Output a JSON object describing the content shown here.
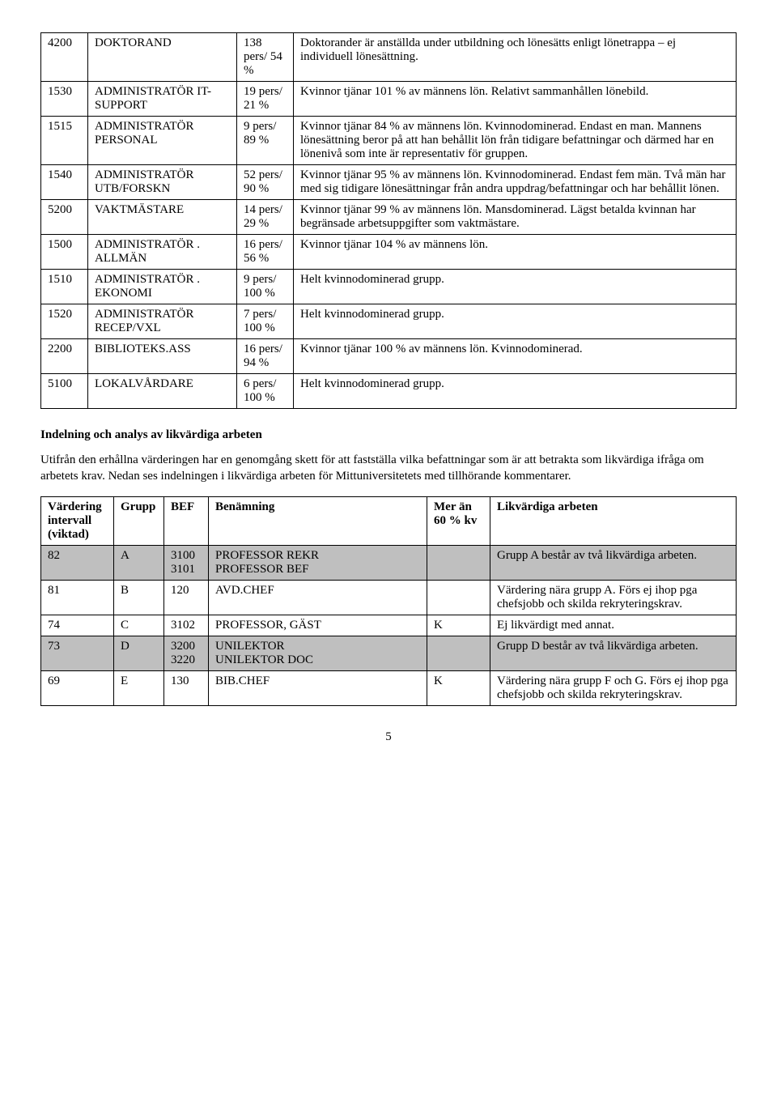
{
  "table1": {
    "rows": [
      {
        "code": "4200",
        "title": "DOKTORAND",
        "stat": "138 pers/ 54 %",
        "comment": "Doktorander är anställda under utbildning och lönesätts enligt lönetrappa – ej individuell lönesättning."
      },
      {
        "code": "1530",
        "title": "ADMINISTRATÖR IT-SUPPORT",
        "stat": "19 pers/ 21 %",
        "comment": "Kvinnor tjänar 101 % av männens lön. Relativt sammanhållen lönebild."
      },
      {
        "code": "1515",
        "title": "ADMINISTRATÖR PERSONAL",
        "stat": "9 pers/ 89 %",
        "comment": "Kvinnor tjänar 84 % av männens lön. Kvinnodominerad. Endast en man. Mannens lönesättning beror på att han behållit lön från tidigare befattningar och därmed har en lönenivå som inte är representativ för gruppen."
      },
      {
        "code": "1540",
        "title": "ADMINISTRATÖR UTB/FORSKN",
        "stat": "52 pers/ 90 %",
        "comment": "Kvinnor tjänar 95 % av männens lön. Kvinnodominerad. Endast fem män. Två män har med sig tidigare lönesättningar från andra uppdrag/befattningar och har behållit lönen."
      },
      {
        "code": "5200",
        "title": "VAKTMÄSTARE",
        "stat": "14 pers/ 29 %",
        "comment": "Kvinnor tjänar 99 % av männens lön. Mansdominerad. Lägst betalda kvinnan har begränsade arbetsuppgifter som vaktmästare."
      },
      {
        "code": "1500",
        "title": "ADMINISTRATÖR . ALLMÄN",
        "stat": "16 pers/ 56 %",
        "comment": "Kvinnor tjänar 104 % av männens lön."
      },
      {
        "code": "1510",
        "title": "ADMINISTRATÖR . EKONOMI",
        "stat": "9 pers/ 100 %",
        "comment": "Helt kvinnodominerad grupp."
      },
      {
        "code": "1520",
        "title": "ADMINISTRATÖR RECEP/VXL",
        "stat": "7 pers/ 100 %",
        "comment": "Helt kvinnodominerad grupp."
      },
      {
        "code": "2200",
        "title": "BIBLIOTEKS.ASS",
        "stat": "16 pers/ 94 %",
        "comment": "Kvinnor tjänar 100 % av männens lön. Kvinnodominerad."
      },
      {
        "code": "5100",
        "title": "LOKALVÅRDARE",
        "stat": "6 pers/ 100 %",
        "comment": "Helt kvinnodominerad grupp."
      }
    ]
  },
  "section_heading": "Indelning och analys av likvärdiga arbeten",
  "section_body": "Utifrån den erhållna värderingen har en genomgång skett för att fastställa vilka befattningar som är att betrakta som likvärdiga ifråga om arbetets krav. Nedan ses indelningen i likvärdiga arbeten för Mittuniversitetets med tillhörande kommentarer.",
  "table2": {
    "headers": {
      "col0": "Värdering intervall (viktad)",
      "col1": "Grupp",
      "col2": "BEF",
      "col3": "Benämning",
      "col4": "Mer än 60 % kv",
      "col5": "Likvärdiga arbeten"
    },
    "rows": [
      {
        "shaded": true,
        "v": "82",
        "g": "A",
        "bef": "3100\n3101",
        "name": "PROFESSOR REKR\nPROFESSOR BEF",
        "kv": "",
        "lik": "Grupp A består av två likvärdiga arbeten."
      },
      {
        "shaded": false,
        "v": "81",
        "g": "B",
        "bef": "120",
        "name": "AVD.CHEF",
        "kv": "",
        "lik": "Värdering nära grupp A. Förs ej ihop pga chefsjobb och skilda rekryteringskrav."
      },
      {
        "shaded": false,
        "v": "74",
        "g": "C",
        "bef": "3102",
        "name": "PROFESSOR, GÄST",
        "kv": "K",
        "lik": "Ej likvärdigt med annat."
      },
      {
        "shaded": true,
        "v": "73",
        "g": "D",
        "bef": "3200\n3220",
        "name": "UNILEKTOR\nUNILEKTOR DOC",
        "kv": "",
        "lik": "Grupp D består av två likvärdiga arbeten."
      },
      {
        "shaded": false,
        "v": "69",
        "g": "E",
        "bef": "130",
        "name": "BIB.CHEF",
        "kv": "K",
        "lik": "Värdering nära grupp F och G. Förs ej ihop pga chefsjobb och skilda rekryteringskrav."
      }
    ]
  },
  "page_number": "5"
}
